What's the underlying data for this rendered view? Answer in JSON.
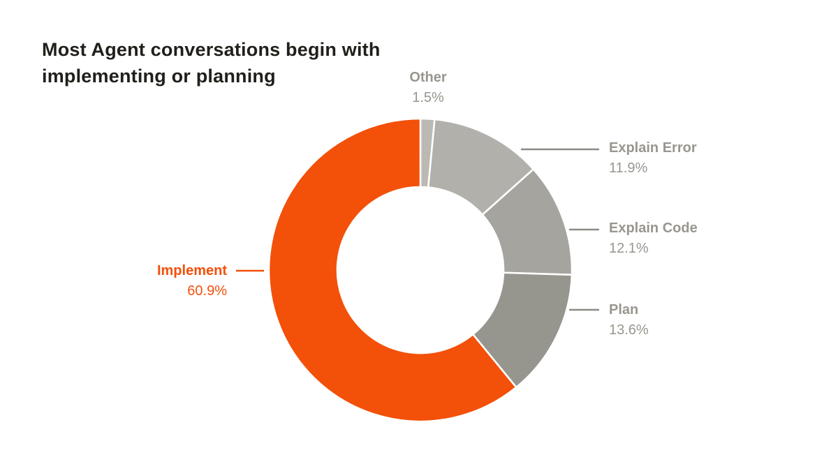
{
  "title": "Most Agent conversations begin with implementing or planning",
  "colors": {
    "background": "#FFFFFF",
    "title_text": "#211F1A",
    "label_gray": "#98968E",
    "leader_line_gray": "#8B8A85",
    "accent_orange": "#F35009"
  },
  "chart_data": {
    "type": "pie",
    "subtype": "donut",
    "title": "Most Agent conversations begin with implementing or planning",
    "start_angle_deg": 0,
    "direction": "clockwise",
    "inner_radius_ratio": 0.55,
    "legend_position": "outside-callouts",
    "segments": [
      {
        "label": "Other",
        "value": 1.5,
        "display_pct": "1.5%",
        "color": "#BDBCB7",
        "pattern": "dots"
      },
      {
        "label": "Explain Error",
        "value": 11.9,
        "display_pct": "11.9%",
        "color": "#B1B0AB"
      },
      {
        "label": "Explain Code",
        "value": 12.1,
        "display_pct": "12.1%",
        "color": "#A5A49F"
      },
      {
        "label": "Plan",
        "value": 13.6,
        "display_pct": "13.6%",
        "color": "#96958E"
      },
      {
        "label": "Implement",
        "value": 60.9,
        "display_pct": "60.9%",
        "color": "#F35009",
        "emphasis": true
      }
    ]
  }
}
